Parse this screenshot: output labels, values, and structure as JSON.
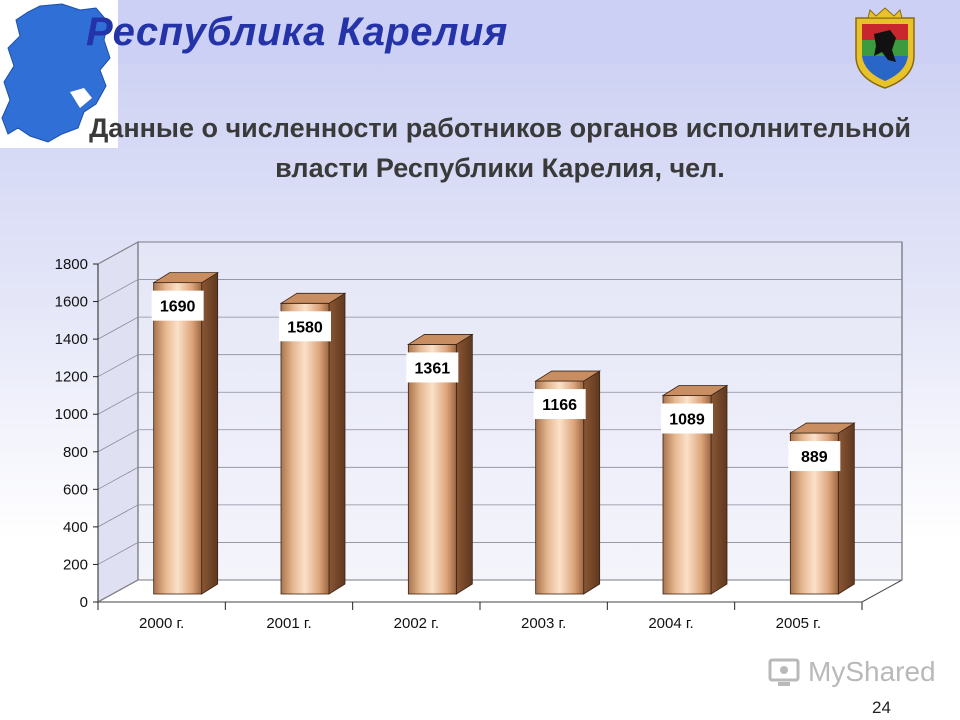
{
  "header": {
    "title": "Республика Карелия"
  },
  "chart_data": {
    "type": "bar",
    "title": "Данные о численности работников органов исполнительной власти Республики Карелия, чел.",
    "categories": [
      "2000 г.",
      "2001 г.",
      "2002 г.",
      "2003 г.",
      "2004 г.",
      "2005 г."
    ],
    "values": [
      1690,
      1580,
      1361,
      1166,
      1089,
      889
    ],
    "data_labels": [
      "1690",
      "1580",
      "1361",
      "1166",
      "1089",
      "889"
    ],
    "ylim": [
      0,
      1800
    ],
    "yticks": [
      0,
      200,
      400,
      600,
      800,
      1000,
      1200,
      1400,
      1600,
      1800
    ],
    "grid": true,
    "style": "3d-cylinder",
    "bar_color": "#e0b08c"
  },
  "watermark": {
    "text": "MyShared"
  },
  "page_number": "24",
  "icons": [
    "karelia-map-icon",
    "coat-of-arms-icon",
    "myshared-logo-icon"
  ]
}
